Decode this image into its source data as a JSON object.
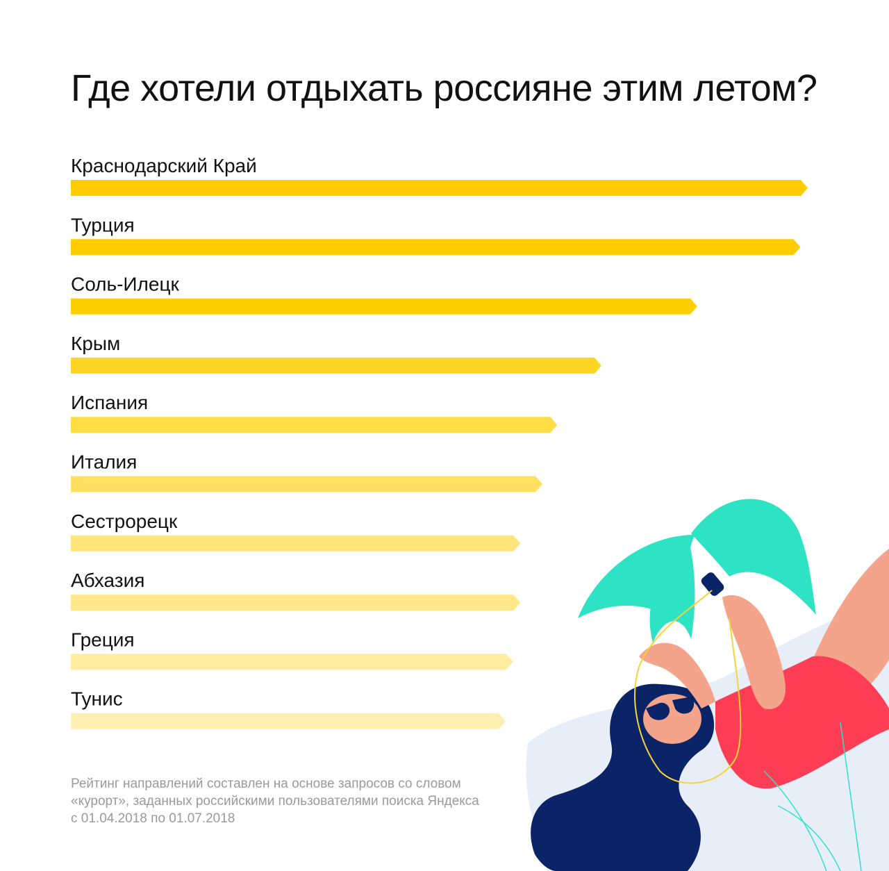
{
  "title": "Где хотели отдыхать россияне этим летом?",
  "chart_data": {
    "type": "bar",
    "orientation": "horizontal",
    "title": "Где хотели отдыхать россияне этим летом?",
    "categories": [
      "Краснодарский Край",
      "Турция",
      "Соль-Илецк",
      "Крым",
      "Испания",
      "Италия",
      "Сестрорецк",
      "Абхазия",
      "Греция",
      "Тунис"
    ],
    "values": [
      100,
      99,
      85,
      72,
      66,
      64,
      61,
      61,
      60,
      59
    ],
    "value_scale": "relative (0–100), read from bar lengths; no numeric axis printed",
    "xlim": [
      0,
      100
    ],
    "grid": false,
    "legend": "none",
    "bar_colors": [
      "#FFCC00",
      "#FFCC00",
      "#FFD000",
      "#FFD523",
      "#FFDD45",
      "#FFE060",
      "#FFE47A",
      "#FFE88C",
      "#FFEC9E",
      "#FFEFB2"
    ]
  },
  "footnote": {
    "lines": [
      "Рейтинг направлений составлен на основе запросов со словом",
      "«курорт», заданных российскими пользователями поиска Яндекса",
      "с 01.04.2018 по 01.07.2018"
    ]
  },
  "illustration": {
    "description_icon": "woman-on-beach-illustration",
    "colors": {
      "leaf": "#2EE2C4",
      "hair": "#0A2467",
      "swimsuit": "#FF3D55",
      "skin": "#F4A48B",
      "towel": "#E8EEF8",
      "earphone": "#F5D43A"
    }
  }
}
